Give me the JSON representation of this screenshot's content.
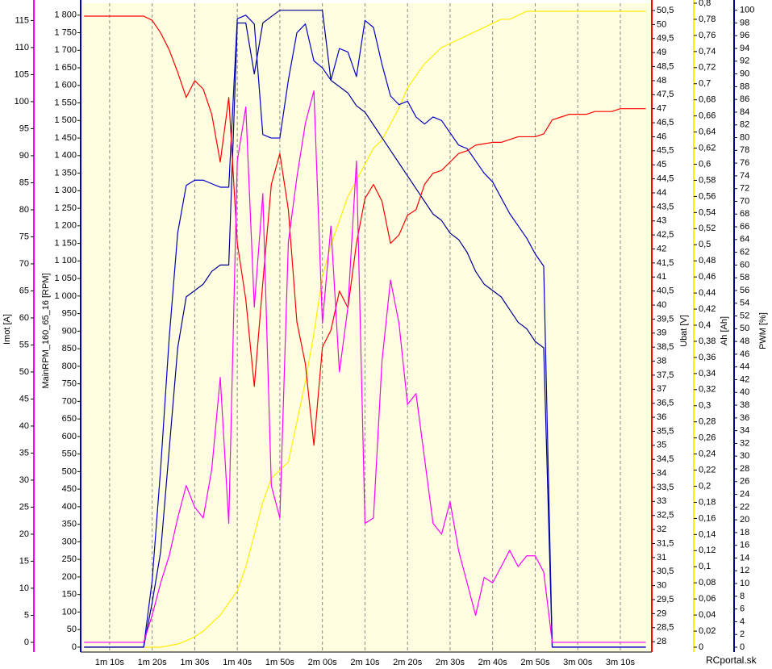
{
  "chart_data": {
    "type": "line",
    "watermark": "RCportal.sk",
    "grid": true,
    "x": [
      64,
      66,
      68,
      70,
      72,
      74,
      76,
      78,
      80,
      82,
      84,
      86,
      88,
      90,
      92,
      94,
      96,
      98,
      100,
      102,
      104,
      106,
      108,
      110,
      112,
      114,
      116,
      118,
      120,
      122,
      124,
      126,
      128,
      130,
      132,
      134,
      136,
      138,
      140,
      142,
      144,
      146,
      148,
      150,
      152,
      154,
      156,
      158,
      160,
      162,
      164,
      166,
      168,
      170,
      172,
      174,
      176,
      178,
      180,
      182,
      184,
      186,
      188,
      190,
      192,
      194,
      196
    ],
    "xlim": [
      63.2,
      197.4
    ],
    "xticks": [
      {
        "value": 70,
        "label": "1m 10s"
      },
      {
        "value": 80,
        "label": "1m 20s"
      },
      {
        "value": 90,
        "label": "1m 30s"
      },
      {
        "value": 100,
        "label": "1m 40s"
      },
      {
        "value": 110,
        "label": "1m 50s"
      },
      {
        "value": 120,
        "label": "2m 00s"
      },
      {
        "value": 130,
        "label": "2m 10s"
      },
      {
        "value": 140,
        "label": "2m 20s"
      },
      {
        "value": 150,
        "label": "2m 30s"
      },
      {
        "value": 160,
        "label": "2m 40s"
      },
      {
        "value": 170,
        "label": "2m 50s"
      },
      {
        "value": 180,
        "label": "3m 00s"
      },
      {
        "value": 190,
        "label": "3m 10s"
      }
    ],
    "ylim": [
      -1.8,
      118.2
    ],
    "yticks": [
      0,
      5,
      10,
      15,
      20,
      25,
      30,
      35,
      40,
      45,
      50,
      55,
      60,
      65,
      70,
      75,
      80,
      85,
      90,
      95,
      100,
      105,
      110,
      115
    ],
    "y2lim": [
      -14,
      1834
    ],
    "y2ticks": [
      0,
      50,
      100,
      150,
      200,
      250,
      300,
      350,
      400,
      450,
      500,
      550,
      600,
      650,
      700,
      750,
      800,
      850,
      900,
      950,
      {
        "value": 1000,
        "label": "1 000"
      },
      {
        "value": 1050,
        "label": "1 050"
      },
      {
        "value": 1100,
        "label": "1 100"
      },
      {
        "value": 1150,
        "label": "1 150"
      },
      {
        "value": 1200,
        "label": "1 200"
      },
      {
        "value": 1250,
        "label": "1 250"
      },
      {
        "value": 1300,
        "label": "1 300"
      },
      {
        "value": 1350,
        "label": "1 350"
      },
      {
        "value": 1400,
        "label": "1 400"
      },
      {
        "value": 1450,
        "label": "1 450"
      },
      {
        "value": 1500,
        "label": "1 500"
      },
      {
        "value": 1550,
        "label": "1 550"
      },
      {
        "value": 1600,
        "label": "1 600"
      },
      {
        "value": 1650,
        "label": "1 650"
      },
      {
        "value": 1700,
        "label": "1 700"
      },
      {
        "value": 1750,
        "label": "1 750"
      },
      {
        "value": 1800,
        "label": "1 800"
      }
    ],
    "y3lim": [
      27.63,
      50.76
    ],
    "y3ticks": [
      28,
      {
        "value": 28.5,
        "label": "28,5"
      },
      29,
      {
        "value": 29.5,
        "label": "29,5"
      },
      30,
      {
        "value": 30.5,
        "label": "30,5"
      },
      31,
      {
        "value": 31.5,
        "label": "31,5"
      },
      32,
      {
        "value": 32.5,
        "label": "32,5"
      },
      33,
      {
        "value": 33.5,
        "label": "33,5"
      },
      34,
      {
        "value": 34.5,
        "label": "34,5"
      },
      35,
      {
        "value": 35.5,
        "label": "35,5"
      },
      36,
      {
        "value": 36.5,
        "label": "36,5"
      },
      37,
      {
        "value": 37.5,
        "label": "37,5"
      },
      38,
      {
        "value": 38.5,
        "label": "38,5"
      },
      39,
      {
        "value": 39.5,
        "label": "39,5"
      },
      40,
      {
        "value": 40.5,
        "label": "40,5"
      },
      41,
      {
        "value": 41.5,
        "label": "41,5"
      },
      42,
      {
        "value": 42.5,
        "label": "42,5"
      },
      43,
      {
        "value": 43.5,
        "label": "43,5"
      },
      44,
      {
        "value": 44.5,
        "label": "44,5"
      },
      45,
      {
        "value": 45.5,
        "label": "45,5"
      },
      46,
      {
        "value": 46.5,
        "label": "46,5"
      },
      47,
      {
        "value": 47.5,
        "label": "47,5"
      },
      48,
      {
        "value": 48.5,
        "label": "48,5"
      },
      49,
      {
        "value": 49.5,
        "label": "49,5"
      },
      50,
      {
        "value": 50.5,
        "label": "50,5"
      }
    ],
    "y4lim": [
      -0.006,
      0.8
    ],
    "y4ticks": [
      0,
      {
        "value": 0.02,
        "label": "0,02"
      },
      {
        "value": 0.04,
        "label": "0,04"
      },
      {
        "value": 0.06,
        "label": "0,06"
      },
      {
        "value": 0.08,
        "label": "0,08"
      },
      {
        "value": 0.1,
        "label": "0,1"
      },
      {
        "value": 0.12,
        "label": "0,12"
      },
      {
        "value": 0.14,
        "label": "0,14"
      },
      {
        "value": 0.16,
        "label": "0,16"
      },
      {
        "value": 0.18,
        "label": "0,18"
      },
      {
        "value": 0.2,
        "label": "0,2"
      },
      {
        "value": 0.22,
        "label": "0,22"
      },
      {
        "value": 0.24,
        "label": "0,24"
      },
      {
        "value": 0.26,
        "label": "0,26"
      },
      {
        "value": 0.28,
        "label": "0,28"
      },
      {
        "value": 0.3,
        "label": "0,3"
      },
      {
        "value": 0.32,
        "label": "0,32"
      },
      {
        "value": 0.34,
        "label": "0,34"
      },
      {
        "value": 0.36,
        "label": "0,36"
      },
      {
        "value": 0.38,
        "label": "0,38"
      },
      {
        "value": 0.4,
        "label": "0,4"
      },
      {
        "value": 0.42,
        "label": "0,42"
      },
      {
        "value": 0.44,
        "label": "0,44"
      },
      {
        "value": 0.46,
        "label": "0,46"
      },
      {
        "value": 0.48,
        "label": "0,48"
      },
      {
        "value": 0.5,
        "label": "0,5"
      },
      {
        "value": 0.52,
        "label": "0,52"
      },
      {
        "value": 0.54,
        "label": "0,54"
      },
      {
        "value": 0.56,
        "label": "0,56"
      },
      {
        "value": 0.58,
        "label": "0,58"
      },
      {
        "value": 0.6,
        "label": "0,6"
      },
      {
        "value": 0.62,
        "label": "0,62"
      },
      {
        "value": 0.64,
        "label": "0,64"
      },
      {
        "value": 0.66,
        "label": "0,66"
      },
      {
        "value": 0.68,
        "label": "0,68"
      },
      {
        "value": 0.7,
        "label": "0,7"
      },
      {
        "value": 0.72,
        "label": "0,72"
      },
      {
        "value": 0.74,
        "label": "0,74"
      },
      {
        "value": 0.76,
        "label": "0,76"
      },
      {
        "value": 0.78,
        "label": "0,78"
      },
      {
        "value": 0.8,
        "label": "0,8"
      }
    ],
    "y5lim": [
      -0.76,
      101.1
    ],
    "y5ticks": [
      0,
      2,
      4,
      6,
      8,
      10,
      12,
      14,
      16,
      18,
      20,
      22,
      24,
      26,
      28,
      30,
      32,
      34,
      36,
      38,
      40,
      42,
      44,
      46,
      48,
      50,
      52,
      54,
      56,
      58,
      60,
      62,
      64,
      66,
      68,
      70,
      72,
      74,
      76,
      78,
      80,
      82,
      84,
      86,
      88,
      90,
      92,
      94,
      96,
      98,
      100
    ],
    "series": [
      {
        "name": "Imot [A]",
        "axis": "y",
        "color": "#ff00ff",
        "values": [
          0,
          0,
          0,
          0,
          0,
          0,
          0,
          0,
          5,
          11,
          16,
          23,
          29,
          25,
          23,
          32,
          49,
          22,
          89,
          99,
          62,
          83,
          29,
          23,
          74,
          86,
          96,
          102,
          59,
          77,
          50,
          62,
          89,
          22,
          23,
          52,
          67,
          59,
          44,
          46,
          34,
          22,
          20,
          26,
          17,
          11,
          5,
          12,
          11,
          14,
          17,
          14,
          16,
          16,
          13,
          0,
          0,
          0,
          0,
          0,
          0,
          0,
          0,
          0,
          0,
          0,
          0
        ]
      },
      {
        "name": "MainRPM_160_65_16 [RPM]",
        "axis": "y2",
        "color": "#0000c8",
        "values": [
          0,
          0,
          0,
          0,
          0,
          0,
          0,
          0,
          190,
          510,
          880,
          1180,
          1315,
          1330,
          1330,
          1320,
          1310,
          1310,
          1790,
          1800,
          1775,
          1460,
          1450,
          1450,
          1615,
          1750,
          1775,
          1670,
          1650,
          1615,
          1705,
          1695,
          1625,
          1785,
          1765,
          1660,
          1570,
          1545,
          1555,
          1510,
          1490,
          1510,
          1500,
          1465,
          1430,
          1420,
          1385,
          1350,
          1325,
          1280,
          1235,
          1200,
          1165,
          1120,
          1085,
          0,
          0,
          0,
          0,
          0,
          0,
          0,
          0,
          0,
          0,
          0,
          0
        ]
      },
      {
        "name": "Ubat [V]",
        "axis": "y3",
        "color": "#ff0000",
        "values": [
          50.3,
          50.3,
          50.3,
          50.3,
          50.3,
          50.3,
          50.3,
          50.3,
          50.15,
          49.7,
          49.1,
          48.3,
          47.4,
          48.0,
          47.7,
          46.8,
          45.1,
          47.4,
          42.2,
          40.2,
          37.1,
          40.8,
          44.3,
          45.4,
          43.4,
          39.4,
          37.9,
          35.0,
          38.5,
          39.1,
          40.5,
          39.9,
          42.2,
          43.8,
          44.3,
          43.7,
          42.2,
          42.5,
          43.2,
          43.4,
          44.3,
          44.7,
          44.8,
          45.1,
          45.4,
          45.5,
          45.7,
          45.75,
          45.8,
          45.8,
          45.9,
          46.0,
          46.0,
          46.0,
          46.1,
          46.6,
          46.7,
          46.8,
          46.8,
          46.8,
          46.9,
          46.9,
          46.9,
          47.0,
          47.0,
          47.0,
          47.0
        ]
      },
      {
        "name": "Ah [Ah]",
        "axis": "y4",
        "color": "#ffee00",
        "values": [
          0,
          0,
          0,
          0,
          0,
          0,
          0,
          0,
          0,
          0,
          0.002,
          0.004,
          0.008,
          0.013,
          0.02,
          0.03,
          0.04,
          0.055,
          0.07,
          0.1,
          0.14,
          0.18,
          0.21,
          0.22,
          0.23,
          0.28,
          0.33,
          0.39,
          0.46,
          0.5,
          0.53,
          0.56,
          0.58,
          0.6,
          0.62,
          0.63,
          0.65,
          0.67,
          0.695,
          0.71,
          0.725,
          0.735,
          0.745,
          0.75,
          0.755,
          0.76,
          0.765,
          0.77,
          0.775,
          0.78,
          0.78,
          0.785,
          0.79,
          0.79,
          0.79,
          0.79,
          0.79,
          0.79,
          0.79,
          0.79,
          0.79,
          0.79,
          0.79,
          0.79,
          0.79,
          0.79,
          0.79
        ]
      },
      {
        "name": "PWM [%]",
        "axis": "y5",
        "color": "#000090",
        "values": [
          0,
          0,
          0,
          0,
          0,
          0,
          0,
          0,
          7,
          15,
          31,
          47,
          55,
          56,
          57,
          59,
          60,
          60,
          98,
          98,
          90,
          98,
          99,
          100,
          100,
          100,
          100,
          100,
          100,
          89,
          88,
          87,
          85,
          84,
          82,
          80,
          78,
          76,
          74,
          72,
          70,
          68,
          67,
          65,
          64,
          62,
          59,
          57,
          56,
          55,
          53,
          51,
          50,
          48,
          47,
          0,
          0,
          0,
          0,
          0,
          0,
          0,
          0,
          0,
          0,
          0,
          0
        ]
      }
    ]
  }
}
